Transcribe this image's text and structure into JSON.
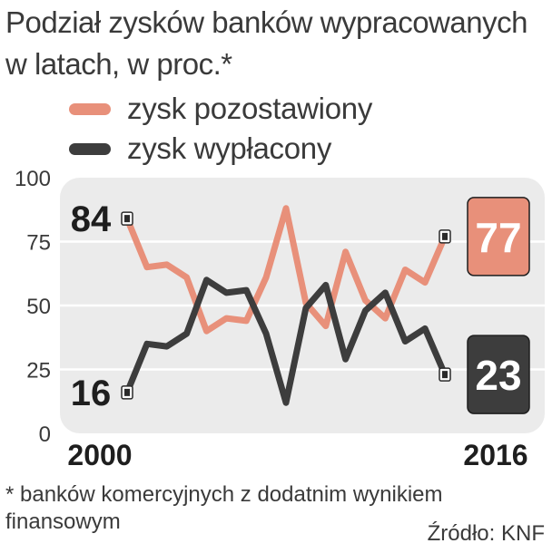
{
  "title": "Podział zysków banków wypracowanych w latach, w proc.*",
  "legend": [
    {
      "label": "zysk pozostawiony",
      "color": "#e8907a"
    },
    {
      "label": "zysk wypłacony",
      "color": "#3d3d3d"
    }
  ],
  "footnote": "* banków komercyjnych z dodatnim wynikiem finansowym",
  "source": "Źródło: KNF",
  "chart_data": {
    "type": "line",
    "x": [
      2000,
      2001,
      2002,
      2003,
      2004,
      2005,
      2006,
      2007,
      2008,
      2009,
      2010,
      2011,
      2012,
      2013,
      2014,
      2015,
      2016
    ],
    "xlim": [
      2000,
      2016
    ],
    "x_tick_labels": [
      "2000",
      "2016"
    ],
    "ylim": [
      0,
      100
    ],
    "y_ticks": [
      0,
      25,
      50,
      75,
      100
    ],
    "grid": true,
    "series": [
      {
        "name": "zysk pozostawiony",
        "color": "#e8907a",
        "values": [
          84,
          65,
          66,
          61,
          40,
          45,
          44,
          61,
          88,
          51,
          42,
          71,
          52,
          45,
          64,
          59,
          77
        ]
      },
      {
        "name": "zysk wypłacony",
        "color": "#3d3d3d",
        "values": [
          16,
          35,
          34,
          39,
          60,
          55,
          56,
          39,
          12,
          49,
          58,
          29,
          48,
          55,
          36,
          41,
          23
        ]
      }
    ],
    "start_labels": [
      "84",
      "16"
    ],
    "end_labels": [
      "77",
      "23"
    ]
  }
}
